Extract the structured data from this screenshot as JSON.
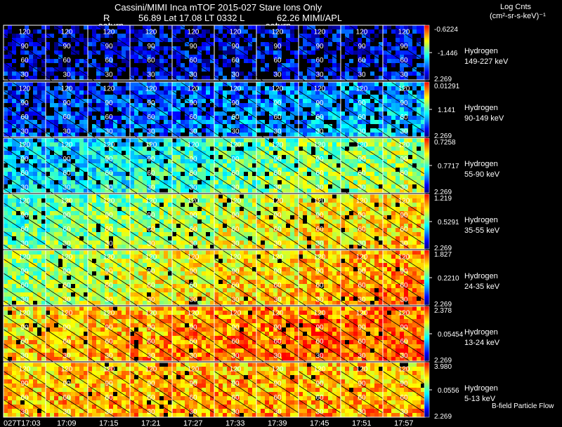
{
  "header": {
    "title": "Cassini/MIMI Inca mTOF  2015-027    Stare    Ions Only",
    "subtitle_left": "R",
    "subtitle_mid": "56.89 Lat 17.08 LT 0332 L",
    "subtitle_right": "62.26  MIMI/APL",
    "overlay_left": "saturn",
    "overlay_right": "saturn",
    "units_title": "Log Cnts",
    "units_label": "(cm²-sr-s-keV)⁻¹"
  },
  "footer": {
    "legend_note": "B-field Particle Flow"
  },
  "colors": {
    "background": "#000000",
    "frame": "#ffffff",
    "contour": "#000000"
  },
  "chart_data": {
    "type": "heatmap",
    "title": "Cassini/MIMI Inca mTOF  2015-027    Stare    Ions Only",
    "time_labels": [
      "027T17:03",
      "17:09",
      "17:15",
      "17:21",
      "17:27",
      "17:33",
      "17:39",
      "17:45",
      "17:51",
      "17:57"
    ],
    "contour_labels": [
      "120",
      "90",
      "60",
      "30"
    ],
    "colormap": [
      "#000080",
      "#0000ff",
      "#0080ff",
      "#00ffff",
      "#80ff80",
      "#ffff00",
      "#ff8000",
      "#ff0000"
    ],
    "rows": [
      {
        "species": "Hydrogen",
        "energy": "149-227 keV",
        "cmax": "-0.6224",
        "cmid": "-1.446",
        "cmin": "2.269",
        "level": [
          0.12,
          0.13,
          0.13,
          0.14,
          0.14,
          0.14,
          0.15,
          0.15,
          0.15,
          0.15
        ],
        "fill": 0.62
      },
      {
        "species": "Hydrogen",
        "energy": "90-149 keV",
        "cmax": "0.01291",
        "cmid": "1.141",
        "cmin": "2.269",
        "level": [
          0.18,
          0.2,
          0.22,
          0.24,
          0.26,
          0.28,
          0.3,
          0.32,
          0.34,
          0.36
        ],
        "fill": 0.82
      },
      {
        "species": "Hydrogen",
        "energy": "55-90 keV",
        "cmax": "0.7258",
        "cmid": "0.7717",
        "cmin": "2.269",
        "level": [
          0.38,
          0.4,
          0.43,
          0.46,
          0.49,
          0.52,
          0.56,
          0.59,
          0.61,
          0.63
        ],
        "fill": 0.92
      },
      {
        "species": "Hydrogen",
        "energy": "35-55 keV",
        "cmax": "1.219",
        "cmid": "0.5291",
        "cmin": "2.269",
        "level": [
          0.52,
          0.55,
          0.58,
          0.61,
          0.64,
          0.67,
          0.7,
          0.72,
          0.74,
          0.76
        ],
        "fill": 0.96
      },
      {
        "species": "Hydrogen",
        "energy": "24-35 keV",
        "cmax": "1.827",
        "cmid": "0.2210",
        "cmin": "2.269",
        "level": [
          0.6,
          0.63,
          0.66,
          0.69,
          0.72,
          0.75,
          0.77,
          0.8,
          0.82,
          0.84
        ],
        "fill": 0.97
      },
      {
        "species": "Hydrogen",
        "energy": "13-24 keV",
        "cmax": "2.378",
        "cmid": "0.05454",
        "cmin": "2.269",
        "level": [
          0.76,
          0.78,
          0.8,
          0.82,
          0.84,
          0.86,
          0.87,
          0.88,
          0.89,
          0.9
        ],
        "fill": 0.98
      },
      {
        "species": "Hydrogen",
        "energy": "5-13 keV",
        "cmax": "3.980",
        "cmid": "0.0556",
        "cmin": "2.269",
        "level": [
          0.78,
          0.79,
          0.8,
          0.8,
          0.81,
          0.81,
          0.81,
          0.8,
          0.8,
          0.8
        ],
        "fill": 0.97
      }
    ]
  }
}
